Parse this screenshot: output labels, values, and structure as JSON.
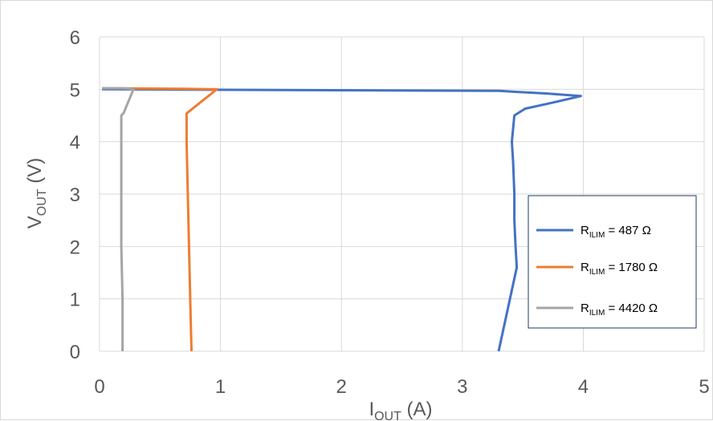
{
  "chart_data": {
    "type": "line",
    "title": "",
    "xlabel": {
      "main": "I",
      "sub": "OUT",
      "unit": " (A)"
    },
    "ylabel": {
      "main": "V",
      "sub": "OUT",
      "unit": " (V)"
    },
    "xlim": [
      0,
      5
    ],
    "ylim": [
      0,
      6
    ],
    "xticks": [
      "0",
      "1",
      "2",
      "3",
      "4",
      "5"
    ],
    "yticks": [
      "0",
      "1",
      "2",
      "3",
      "4",
      "5",
      "6"
    ],
    "grid": true,
    "legend_position": "right",
    "series": [
      {
        "name": {
          "main": "R",
          "sub": "ILIM",
          "rest": " = 487 Ω"
        },
        "color": "#4472c4",
        "x": [
          0.02,
          3.3,
          3.7,
          3.98,
          3.7,
          3.52,
          3.43,
          3.41,
          3.42,
          3.43,
          3.43,
          3.44,
          3.45,
          3.3
        ],
        "y": [
          5.0,
          4.97,
          4.92,
          4.87,
          4.72,
          4.63,
          4.5,
          4.0,
          3.6,
          3.0,
          2.5,
          2.0,
          1.6,
          0.0
        ]
      },
      {
        "name": {
          "main": "R",
          "sub": "ILIM",
          "rest": " = 1780 Ω"
        },
        "color": "#ed7d31",
        "x": [
          0.02,
          0.7,
          0.97,
          0.72,
          0.72,
          0.73,
          0.74,
          0.75,
          0.76
        ],
        "y": [
          5.02,
          5.01,
          5.0,
          4.54,
          4.0,
          3.0,
          2.0,
          1.0,
          0.0
        ]
      },
      {
        "name": {
          "main": "R",
          "sub": "ILIM",
          "rest": " = 4420 Ω"
        },
        "color": "#a5a5a5",
        "x": [
          0.02,
          0.2,
          0.28,
          0.2,
          0.18,
          0.18,
          0.18,
          0.18,
          0.19,
          0.19
        ],
        "y": [
          5.02,
          5.02,
          5.0,
          4.55,
          4.5,
          4.0,
          3.0,
          2.0,
          1.0,
          0.0
        ]
      }
    ]
  }
}
